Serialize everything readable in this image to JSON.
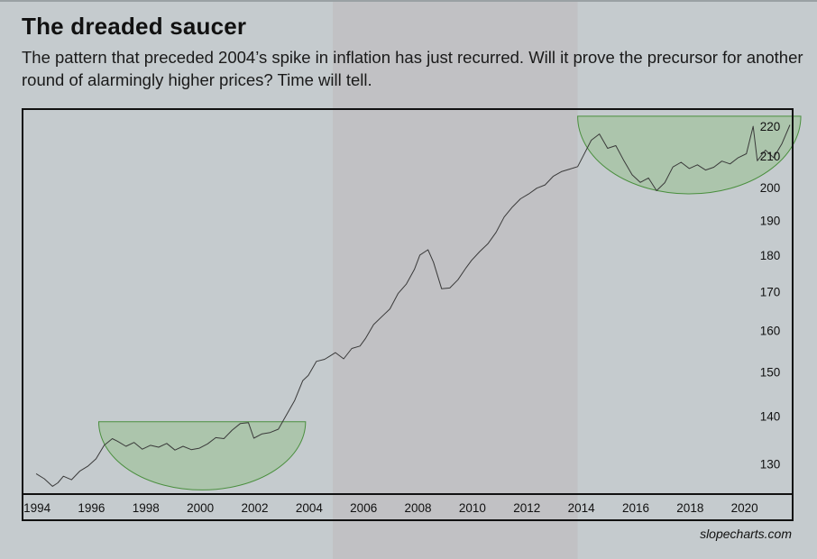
{
  "header": {
    "title": "The dreaded saucer",
    "subtitle": "The pattern that preceded 2004’s spike in inflation has just recurred. Will it prove the precursor for another round of alarmingly higher prices? Time will tell."
  },
  "credit": "slopecharts.com",
  "colors": {
    "background": "#c5cbce",
    "highlight_band": "#bfbfc2",
    "line": "#3a3a3a",
    "saucer_fill": "#8fbf82",
    "saucer_stroke": "#4a8f3e",
    "frame": "#111111"
  },
  "chart_data": {
    "type": "line",
    "title": "",
    "xlabel": "",
    "ylabel": "",
    "x_ticks": [
      "1994",
      "1996",
      "1998",
      "2000",
      "2002",
      "2004",
      "2006",
      "2008",
      "2010",
      "2012",
      "2014",
      "2016",
      "2018",
      "2020"
    ],
    "y_ticks": [
      130,
      140,
      150,
      160,
      170,
      180,
      190,
      200,
      210,
      220
    ],
    "xlim": [
      1993.5,
      2021.8
    ],
    "ylim": [
      124,
      226
    ],
    "y_scale": "log",
    "y_axis_side": "right",
    "grid": false,
    "highlight_band": {
      "x_start": 2004.9,
      "x_end": 2013.9
    },
    "saucers": [
      {
        "x_start": 1996.3,
        "x_end": 2003.9,
        "top": 138.8,
        "bottom": 124.8
      },
      {
        "x_start": 2013.9,
        "x_end": 2022.1,
        "top": 223.5,
        "bottom": 198.0
      }
    ],
    "series": [
      {
        "x": [
          1994.0,
          1994.3,
          1994.6,
          1994.8,
          1995.0,
          1995.3,
          1995.6,
          1995.9,
          1996.2,
          1996.5,
          1996.8,
          1997.0,
          1997.3,
          1997.6,
          1997.9,
          1998.2,
          1998.5,
          1998.8,
          1999.1,
          1999.4,
          1999.7,
          2000.0,
          2000.3,
          2000.6,
          2000.9,
          2001.2,
          2001.5,
          2001.8,
          2002.0,
          2002.3,
          2002.6,
          2002.9,
          2003.2,
          2003.5,
          2003.8,
          2004.0,
          2004.3,
          2004.6,
          2004.8,
          2005.0,
          2005.3,
          2005.6,
          2005.9,
          2006.1,
          2006.4,
          2006.7,
          2007.0,
          2007.3,
          2007.6,
          2007.9,
          2008.1,
          2008.4,
          2008.6,
          2008.9,
          2009.2,
          2009.5,
          2009.8,
          2010.0,
          2010.3,
          2010.6,
          2010.9,
          2011.2,
          2011.5,
          2011.8,
          2012.1,
          2012.4,
          2012.7,
          2013.0,
          2013.3,
          2013.6,
          2013.9,
          2014.1,
          2014.4,
          2014.7,
          2015.0,
          2015.3,
          2015.6,
          2015.9,
          2016.2,
          2016.5,
          2016.8,
          2017.1,
          2017.4,
          2017.7,
          2018.0,
          2018.3,
          2018.6,
          2018.9,
          2019.2,
          2019.5,
          2019.8,
          2020.1,
          2020.35,
          2020.5,
          2020.8,
          2021.1,
          2021.4,
          2021.7
        ],
        "values": [
          128.0,
          127.0,
          125.5,
          126.2,
          127.5,
          126.8,
          128.5,
          129.5,
          131.0,
          133.8,
          135.2,
          134.6,
          133.6,
          134.4,
          133.0,
          133.8,
          133.4,
          134.2,
          132.8,
          133.6,
          132.9,
          133.2,
          134.1,
          135.4,
          135.2,
          137.0,
          138.4,
          138.6,
          135.3,
          136.2,
          136.5,
          137.2,
          140.3,
          143.5,
          148.0,
          149.2,
          152.5,
          153.0,
          153.8,
          154.6,
          153.1,
          155.6,
          156.2,
          158.0,
          161.5,
          163.5,
          165.5,
          169.5,
          172.0,
          176.0,
          180.0,
          181.5,
          178.0,
          170.8,
          171.0,
          173.2,
          176.5,
          178.5,
          181.0,
          183.2,
          186.5,
          191.0,
          194.0,
          196.5,
          198.0,
          199.8,
          200.8,
          203.5,
          205.0,
          205.8,
          206.6,
          210.0,
          215.3,
          217.4,
          212.6,
          213.5,
          208.5,
          204.0,
          201.6,
          203.0,
          199.0,
          201.5,
          206.5,
          208.0,
          206.0,
          207.2,
          205.5,
          206.4,
          208.4,
          207.5,
          209.5,
          210.8,
          220.0,
          208.5,
          212.0,
          209.5,
          214.0,
          220.5
        ]
      }
    ]
  }
}
